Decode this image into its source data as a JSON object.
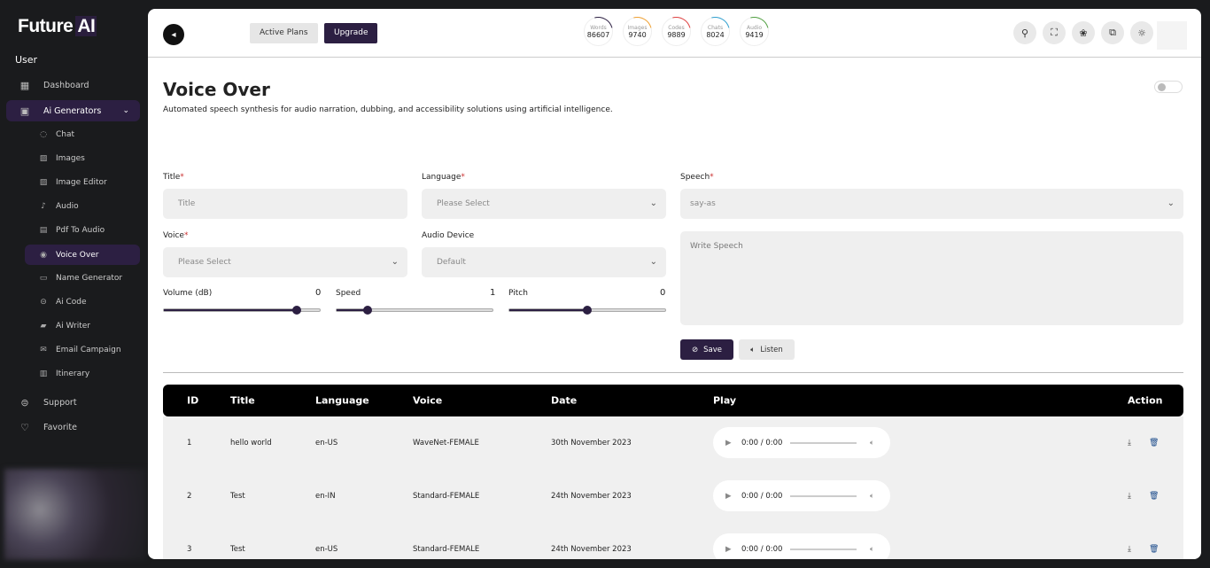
{
  "brand": {
    "name": "Future",
    "suffix": "AI"
  },
  "sidebar": {
    "section": "User",
    "items": [
      {
        "label": "Dashboard",
        "icon": "grid-icon"
      },
      {
        "label": "Ai Generators",
        "icon": "generator-icon"
      },
      {
        "label": "Support",
        "icon": "support-icon"
      },
      {
        "label": "Favorite",
        "icon": "heart-icon"
      }
    ],
    "sub_items": [
      {
        "label": "Chat"
      },
      {
        "label": "Images"
      },
      {
        "label": "Image Editor"
      },
      {
        "label": "Audio"
      },
      {
        "label": "Pdf To Audio"
      },
      {
        "label": "Voice Over"
      },
      {
        "label": "Name Generator"
      },
      {
        "label": "Ai Code"
      },
      {
        "label": "Ai Writer"
      },
      {
        "label": "Email Campaign"
      },
      {
        "label": "Itinerary"
      }
    ]
  },
  "header": {
    "active_plans": "Active Plans",
    "upgrade": "Upgrade",
    "stats": [
      {
        "label": "Words",
        "value": "86607",
        "color": "#2c1f42"
      },
      {
        "label": "Images",
        "value": "9740",
        "color": "#f0a030"
      },
      {
        "label": "Codes",
        "value": "9889",
        "color": "#e04040"
      },
      {
        "label": "Chats",
        "value": "8024",
        "color": "#30a0d0"
      },
      {
        "label": "Audio",
        "value": "9419",
        "color": "#50a040"
      }
    ]
  },
  "page": {
    "title": "Voice Over",
    "description": "Automated speech synthesis for audio narration, dubbing, and accessibility solutions using artificial intelligence."
  },
  "form": {
    "title_label": "Title",
    "title_placeholder": "Title",
    "language_label": "Language",
    "language_value": "Please Select",
    "speech_label": "Speech",
    "speech_value": "say-as",
    "voice_label": "Voice",
    "voice_value": "Please Select",
    "device_label": "Audio Device",
    "device_value": "Default",
    "speech_placeholder": "Write Speech",
    "volume_label": "Volume (dB)",
    "volume": "0",
    "speed_label": "Speed",
    "speed": "1",
    "pitch_label": "Pitch",
    "pitch": "0",
    "volume_fraction": 0.85,
    "speed_fraction": 0.2,
    "pitch_fraction": 0.5,
    "save": "Save",
    "listen": "Listen"
  },
  "table": {
    "headers": [
      "ID",
      "Title",
      "Language",
      "Voice",
      "Date",
      "Play",
      "Action"
    ],
    "rows": [
      {
        "id": "1",
        "title": "hello world",
        "language": "en-US",
        "voice": "WaveNet-FEMALE",
        "date": "30th November 2023",
        "time": "0:00 / 0:00"
      },
      {
        "id": "2",
        "title": "Test",
        "language": "en-IN",
        "voice": "Standard-FEMALE",
        "date": "24th November 2023",
        "time": "0:00 / 0:00"
      },
      {
        "id": "3",
        "title": "Test",
        "language": "en-US",
        "voice": "Standard-FEMALE",
        "date": "24th November 2023",
        "time": "0:00 / 0:00"
      }
    ]
  }
}
